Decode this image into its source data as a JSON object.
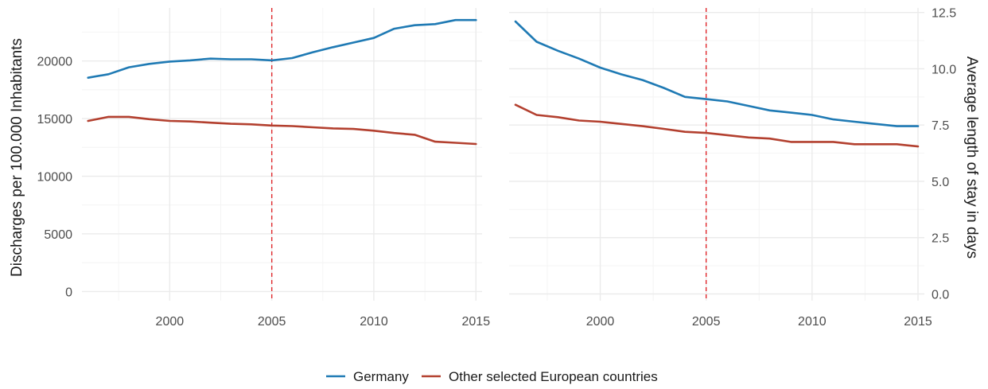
{
  "colors": {
    "germany": "#1f7ab4",
    "europe": "#b3402f",
    "reference": "#e0282c",
    "grid_major": "#ebebeb",
    "grid_minor": "#f4f4f4"
  },
  "legend": {
    "germany": "Germany",
    "europe": "Other selected European countries"
  },
  "chart_data": [
    {
      "type": "line",
      "ylabel": "Discharges per 100.000 Inhabitants",
      "y_axis_side": "left",
      "xlim": [
        1995.7,
        2015.3
      ],
      "ylim": [
        -800,
        24600
      ],
      "x_ticks": [
        2000,
        2005,
        2010,
        2015
      ],
      "y_ticks": [
        0,
        5000,
        10000,
        15000,
        20000
      ],
      "y_tick_labels": [
        "0",
        "5000",
        "10000",
        "15000",
        "20000"
      ],
      "reference_line_x": 2005,
      "x": [
        1996,
        1997,
        1998,
        1999,
        2000,
        2001,
        2002,
        2003,
        2004,
        2005,
        2006,
        2007,
        2008,
        2009,
        2010,
        2011,
        2012,
        2013,
        2014,
        2015
      ],
      "series": [
        {
          "name": "Germany",
          "values": [
            18550,
            18850,
            19450,
            19750,
            19950,
            20050,
            20200,
            20150,
            20150,
            20050,
            20250,
            20750,
            21200,
            21600,
            22000,
            22800,
            23100,
            23200,
            23550,
            23550
          ]
        },
        {
          "name": "Other selected European countries",
          "values": [
            14800,
            15150,
            15150,
            14950,
            14800,
            14750,
            14650,
            14550,
            14500,
            14400,
            14350,
            14250,
            14150,
            14100,
            13950,
            13750,
            13600,
            13000,
            12900,
            12800
          ]
        }
      ],
      "grid": true
    },
    {
      "type": "line",
      "ylabel": "Average length of stay in days",
      "y_axis_side": "right",
      "xlim": [
        1995.7,
        2015.3
      ],
      "ylim": [
        -0.3,
        12.7
      ],
      "x_ticks": [
        2000,
        2005,
        2010,
        2015
      ],
      "y_ticks": [
        0,
        2.5,
        5,
        7.5,
        10,
        12.5
      ],
      "y_tick_labels": [
        "0.0",
        "2.5",
        "5.0",
        "7.5",
        "10.0",
        "12.5"
      ],
      "reference_line_x": 2005,
      "x": [
        1996,
        1997,
        1998,
        1999,
        2000,
        2001,
        2002,
        2003,
        2004,
        2005,
        2006,
        2007,
        2008,
        2009,
        2010,
        2011,
        2012,
        2013,
        2014,
        2015
      ],
      "series": [
        {
          "name": "Germany",
          "values": [
            12.1,
            11.2,
            10.8,
            10.45,
            10.05,
            9.75,
            9.5,
            9.15,
            8.75,
            8.65,
            8.55,
            8.35,
            8.15,
            8.05,
            7.95,
            7.75,
            7.65,
            7.55,
            7.45,
            7.45
          ]
        },
        {
          "name": "Other selected European countries",
          "values": [
            8.4,
            7.95,
            7.85,
            7.7,
            7.65,
            7.55,
            7.45,
            7.33,
            7.2,
            7.15,
            7.05,
            6.95,
            6.9,
            6.75,
            6.75,
            6.75,
            6.65,
            6.65,
            6.65,
            6.55
          ]
        }
      ],
      "grid": true
    }
  ]
}
